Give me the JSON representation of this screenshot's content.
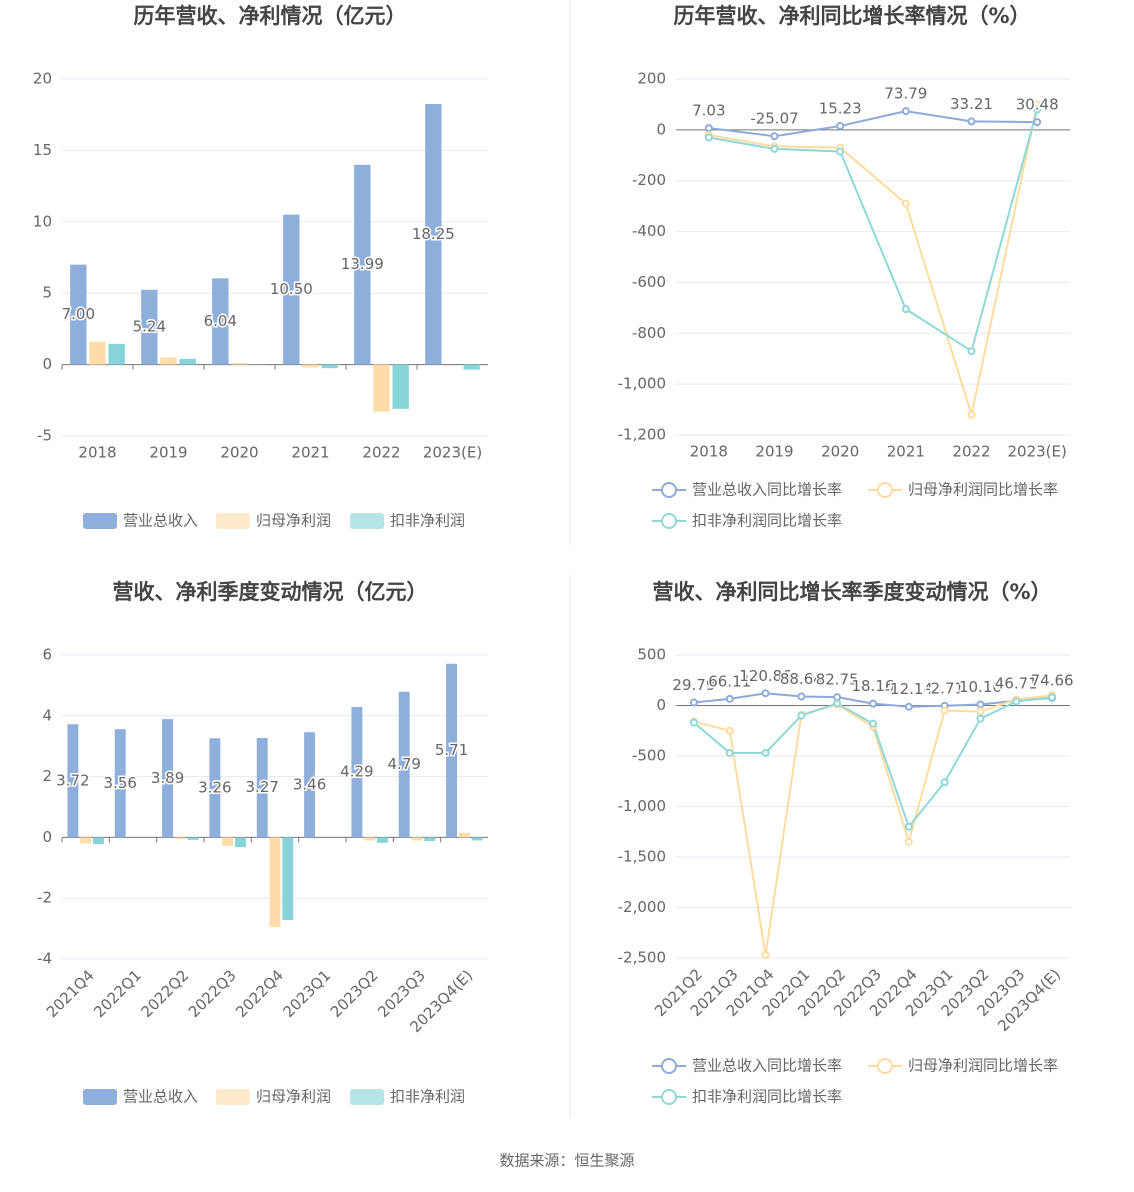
{
  "chart_data": [
    {
      "type": "bar",
      "title": "历年营收、净利情况（亿元）",
      "categories": [
        "2018",
        "2019",
        "2020",
        "2021",
        "2022",
        "2023(E)"
      ],
      "series": [
        {
          "name": "营业总收入",
          "color": "#8eaedc",
          "values": [
            7.0,
            5.24,
            6.04,
            10.5,
            13.99,
            18.25
          ],
          "value_labels": [
            "7.00",
            "5.24",
            "6.04",
            "10.50",
            "13.99",
            "18.25"
          ]
        },
        {
          "name": "归母净利润",
          "color": "#ffdca8",
          "values": [
            1.6,
            0.5,
            0.1,
            -0.2,
            -3.3,
            null
          ]
        },
        {
          "name": "扣非净利润",
          "color": "#86d4d8",
          "values": [
            1.45,
            0.4,
            0.02,
            -0.25,
            -3.1,
            -0.35
          ]
        }
      ],
      "ylim": [
        -5,
        20
      ],
      "yticks": [
        -5,
        0,
        5,
        10,
        15,
        20
      ],
      "grid": true
    },
    {
      "type": "line",
      "title": "历年营收、净利同比增长率情况（%）",
      "categories": [
        "2018",
        "2019",
        "2020",
        "2021",
        "2022",
        "2023(E)"
      ],
      "series": [
        {
          "name": "营业总收入同比增长率",
          "color": "#8eaad8",
          "values": [
            7.03,
            -25.07,
            15.23,
            73.79,
            33.21,
            30.48
          ]
        },
        {
          "name": "归母净利润同比增长率",
          "color": "#ffdc9e",
          "values": [
            -20,
            -65,
            -70,
            -290,
            -1120,
            100
          ]
        },
        {
          "name": "扣非净利润同比增长率",
          "color": "#8fd8d8",
          "values": [
            -30,
            -75,
            -85,
            -705,
            -870,
            80
          ]
        }
      ],
      "ylim": [
        -1200,
        200
      ],
      "yticks": [
        {
          "value": -1200,
          "label": "-1,200"
        },
        {
          "value": -1000,
          "label": "-1,000"
        },
        -800,
        -600,
        -400,
        -200,
        0,
        200
      ],
      "grid": true
    },
    {
      "type": "bar",
      "title": "营收、净利季度变动情况（亿元）",
      "categories": [
        "2021Q4",
        "2022Q1",
        "2022Q2",
        "2022Q3",
        "2022Q4",
        "2023Q1",
        "2023Q2",
        "2023Q3",
        "2023Q4(E)"
      ],
      "series": [
        {
          "name": "营业总收入",
          "color": "#8eaedc",
          "values": [
            3.72,
            3.56,
            3.89,
            3.26,
            3.27,
            3.46,
            4.29,
            4.79,
            5.71
          ],
          "value_labels": [
            "3.72",
            "3.56",
            "3.89",
            "3.26",
            "3.27",
            "3.46",
            "4.29",
            "4.79",
            "5.71"
          ]
        },
        {
          "name": "归母净利润",
          "color": "#ffdca8",
          "values": [
            -0.2,
            null,
            -0.05,
            -0.28,
            -2.95,
            null,
            -0.1,
            -0.1,
            0.15
          ]
        },
        {
          "name": "扣非净利润",
          "color": "#86d4d8",
          "values": [
            -0.22,
            null,
            -0.08,
            -0.32,
            -2.72,
            null,
            -0.18,
            -0.12,
            -0.1
          ]
        }
      ],
      "ylim": [
        -4,
        6
      ],
      "yticks": [
        -4,
        -2,
        0,
        2,
        4,
        6
      ],
      "grid": true
    },
    {
      "type": "line",
      "title": "营收、净利同比增长率季度变动情况（%）",
      "categories": [
        "2021Q2",
        "2021Q3",
        "2021Q4",
        "2022Q1",
        "2022Q2",
        "2022Q3",
        "2022Q4",
        "2023Q1",
        "2023Q2",
        "2023Q3",
        "2023Q4(E)"
      ],
      "series": [
        {
          "name": "营业总收入同比增长率",
          "color": "#8eaad8",
          "values": [
            29.79,
            66.11,
            120.86,
            88.64,
            82.75,
            18.16,
            -12.14,
            -2.71,
            10.16,
            46.71,
            74.66
          ]
        },
        {
          "name": "归母净利润同比增长率",
          "color": "#ffdc9e",
          "values": [
            -160,
            -250,
            -2470,
            -90,
            10,
            -210,
            -1350,
            -50,
            -60,
            60,
            100
          ]
        },
        {
          "name": "扣非净利润同比增长率",
          "color": "#8fd8d8",
          "values": [
            -170,
            -470,
            -470,
            -100,
            20,
            -180,
            -1200,
            -760,
            -130,
            40,
            80
          ]
        }
      ],
      "ylim": [
        -2500,
        500
      ],
      "yticks": [
        {
          "value": -2500,
          "label": "-2,500"
        },
        {
          "value": -2000,
          "label": "-2,000"
        },
        {
          "value": -1500,
          "label": "-1,500"
        },
        {
          "value": -1000,
          "label": "-1,000"
        },
        -500,
        0,
        500
      ],
      "grid": true
    }
  ],
  "source": "数据来源：恒生聚源"
}
